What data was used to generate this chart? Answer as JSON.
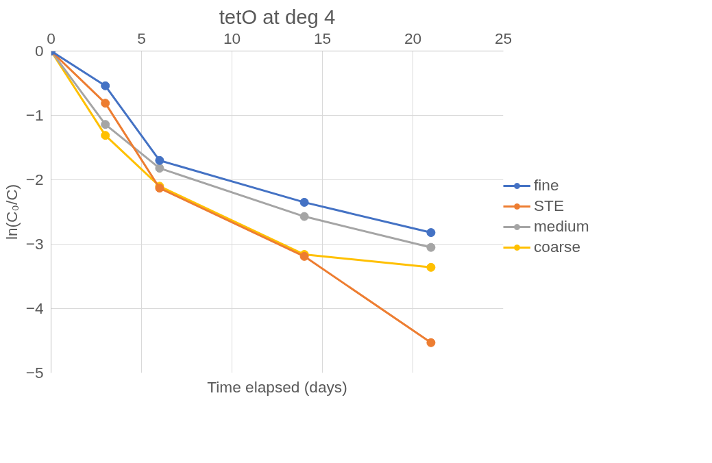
{
  "chart_data": {
    "type": "line",
    "title": "tetO at deg 4",
    "xlabel": "Time elapsed (days)",
    "ylabel": "ln(C₀/C)",
    "x": [
      0,
      3,
      6,
      14,
      21
    ],
    "series": [
      {
        "name": "fine",
        "color": "#4472c4",
        "values": [
          0,
          -0.54,
          -1.7,
          -2.35,
          -2.82
        ]
      },
      {
        "name": "STE",
        "color": "#ed7d31",
        "values": [
          0,
          -0.81,
          -2.13,
          -3.19,
          -4.53
        ]
      },
      {
        "name": "medium",
        "color": "#a5a5a5",
        "values": [
          0,
          -1.14,
          -1.82,
          -2.57,
          -3.05
        ]
      },
      {
        "name": "coarse",
        "color": "#ffc000",
        "values": [
          0,
          -1.31,
          -2.1,
          -3.16,
          -3.36
        ]
      }
    ],
    "xlim": [
      0,
      25
    ],
    "xticks": [
      0,
      5,
      10,
      15,
      20,
      25
    ],
    "ylim": [
      -5,
      0
    ],
    "yticks": [
      -5,
      -4,
      -3,
      -2,
      -1,
      0
    ],
    "grid": true,
    "legend": "right",
    "marker": "circle",
    "line_style": "solid"
  }
}
